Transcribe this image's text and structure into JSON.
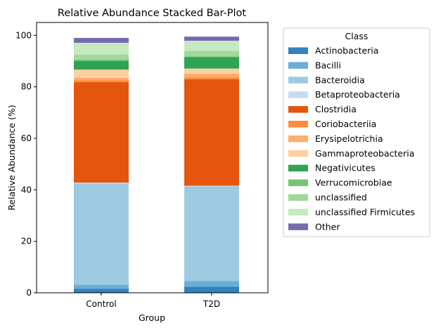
{
  "chart_data": {
    "type": "bar",
    "stacked": true,
    "title": "Relative Abundance Stacked Bar-Plot",
    "xlabel": "Group",
    "ylabel": "Relative Abundance (%)",
    "ylim": [
      0,
      105
    ],
    "yticks": [
      0,
      20,
      40,
      60,
      80,
      100
    ],
    "grid": false,
    "legend_title": "Class",
    "legend_position": "outside-right",
    "categories": [
      "Control",
      "T2D"
    ],
    "series": [
      {
        "name": "Actinobacteria",
        "color": "#3182bd",
        "values": [
          1.6,
          2.4
        ]
      },
      {
        "name": "Bacilli",
        "color": "#6baed6",
        "values": [
          1.6,
          2.2
        ]
      },
      {
        "name": "Bacteroidia",
        "color": "#9ecae1",
        "values": [
          39.3,
          36.7
        ]
      },
      {
        "name": "Betaproteobacteria",
        "color": "#c6dbef",
        "values": [
          0.3,
          0.3
        ]
      },
      {
        "name": "Clostridia",
        "color": "#e6550d",
        "values": [
          39.0,
          41.4
        ]
      },
      {
        "name": "Coriobacteriia",
        "color": "#fd8d3c",
        "values": [
          0.7,
          0.7
        ]
      },
      {
        "name": "Erysipelotrichia",
        "color": "#fdae6b",
        "values": [
          1.0,
          1.4
        ]
      },
      {
        "name": "Gammaproteobacteria",
        "color": "#fdd0a2",
        "values": [
          3.2,
          2.0
        ]
      },
      {
        "name": "Negativicutes",
        "color": "#31a354",
        "values": [
          3.4,
          4.5
        ]
      },
      {
        "name": "Verrucomicrobiae",
        "color": "#74c476",
        "values": [
          0.5,
          0.2
        ]
      },
      {
        "name": "unclassified",
        "color": "#a1d99b",
        "values": [
          2.0,
          2.2
        ]
      },
      {
        "name": "unclassified Firmicutes",
        "color": "#c7e9c0",
        "values": [
          4.5,
          3.9
        ]
      },
      {
        "name": "Other",
        "color": "#756bb1",
        "values": [
          1.9,
          1.6
        ]
      }
    ]
  }
}
